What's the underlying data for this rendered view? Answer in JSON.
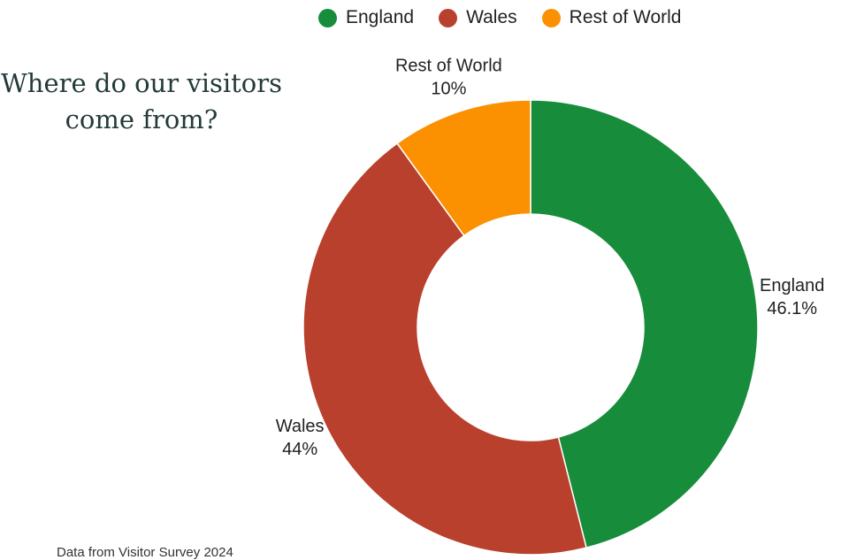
{
  "title": {
    "line1": "Where do our visitors",
    "line2": "come from?"
  },
  "source_note": "Data from Visitor Survey 2024",
  "legend": [
    {
      "label": "England",
      "color": "#178C3A"
    },
    {
      "label": "Wales",
      "color": "#B9402D"
    },
    {
      "label": "Rest of World",
      "color": "#FB9100"
    }
  ],
  "chart_data": {
    "type": "pie",
    "variant": "donut",
    "title": "Where do our visitors come from?",
    "legend_position": "top",
    "slices": [
      {
        "name": "England",
        "value": 46.1,
        "label": "46.1%",
        "color": "#178C3A"
      },
      {
        "name": "Wales",
        "value": 44,
        "label": "44%",
        "color": "#B9402D"
      },
      {
        "name": "Rest of World",
        "value": 10,
        "label": "10%",
        "color": "#FB9100"
      }
    ]
  }
}
